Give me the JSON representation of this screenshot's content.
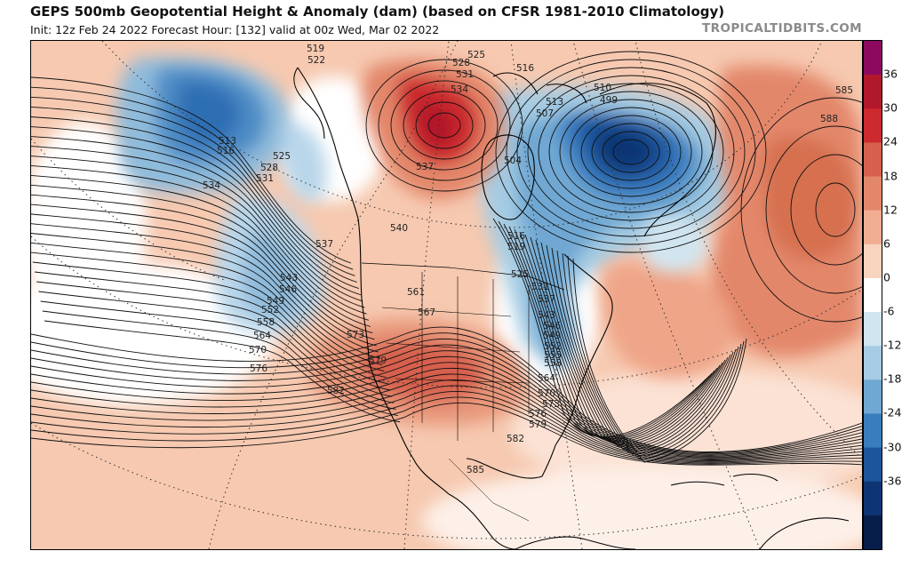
{
  "header": {
    "title": "GEPS 500mb Geopotential Height & Anomaly (dam) (based on CFSR 1981-2010 Climatology)",
    "subtitle": "Init: 12z Feb 24 2022   Forecast Hour: [132]   valid at 00z Wed, Mar 02 2022",
    "brand": "TROPICALTIDBITS.COM"
  },
  "colorbar": {
    "ticks": [
      "36",
      "30",
      "24",
      "18",
      "12",
      "6",
      "0",
      "-6",
      "-12",
      "-18",
      "-24",
      "-30",
      "-36"
    ],
    "colors": [
      "#8b0a5f",
      "#b2182b",
      "#cc2a2f",
      "#d6604d",
      "#e3876b",
      "#f1ad91",
      "#f8d3bd",
      "#ffffff",
      "#d1e5f0",
      "#a6cce3",
      "#6fa8d3",
      "#3a7dbf",
      "#1c559b",
      "#0d3573",
      "#071d4a"
    ]
  },
  "contour_labels": [
    {
      "text": "519"
    },
    {
      "text": "522"
    },
    {
      "text": "528"
    },
    {
      "text": "525"
    },
    {
      "text": "531"
    },
    {
      "text": "534"
    },
    {
      "text": "516"
    },
    {
      "text": "510"
    },
    {
      "text": "499"
    },
    {
      "text": "513"
    },
    {
      "text": "507"
    },
    {
      "text": "504"
    },
    {
      "text": "537"
    },
    {
      "text": "513"
    },
    {
      "text": "516"
    },
    {
      "text": "525"
    },
    {
      "text": "528"
    },
    {
      "text": "531"
    },
    {
      "text": "534"
    },
    {
      "text": "537"
    },
    {
      "text": "540"
    },
    {
      "text": "543"
    },
    {
      "text": "546"
    },
    {
      "text": "549"
    },
    {
      "text": "552"
    },
    {
      "text": "558"
    },
    {
      "text": "564"
    },
    {
      "text": "570"
    },
    {
      "text": "576"
    },
    {
      "text": "582"
    },
    {
      "text": "573"
    },
    {
      "text": "579"
    },
    {
      "text": "561"
    },
    {
      "text": "567"
    },
    {
      "text": "516"
    },
    {
      "text": "519"
    },
    {
      "text": "525"
    },
    {
      "text": "531"
    },
    {
      "text": "537"
    },
    {
      "text": "543"
    },
    {
      "text": "546"
    },
    {
      "text": "549"
    },
    {
      "text": "552"
    },
    {
      "text": "555"
    },
    {
      "text": "558"
    },
    {
      "text": "564"
    },
    {
      "text": "570"
    },
    {
      "text": "573"
    },
    {
      "text": "576"
    },
    {
      "text": "579"
    },
    {
      "text": "582"
    },
    {
      "text": "585"
    },
    {
      "text": "585"
    },
    {
      "text": "588"
    }
  ]
}
